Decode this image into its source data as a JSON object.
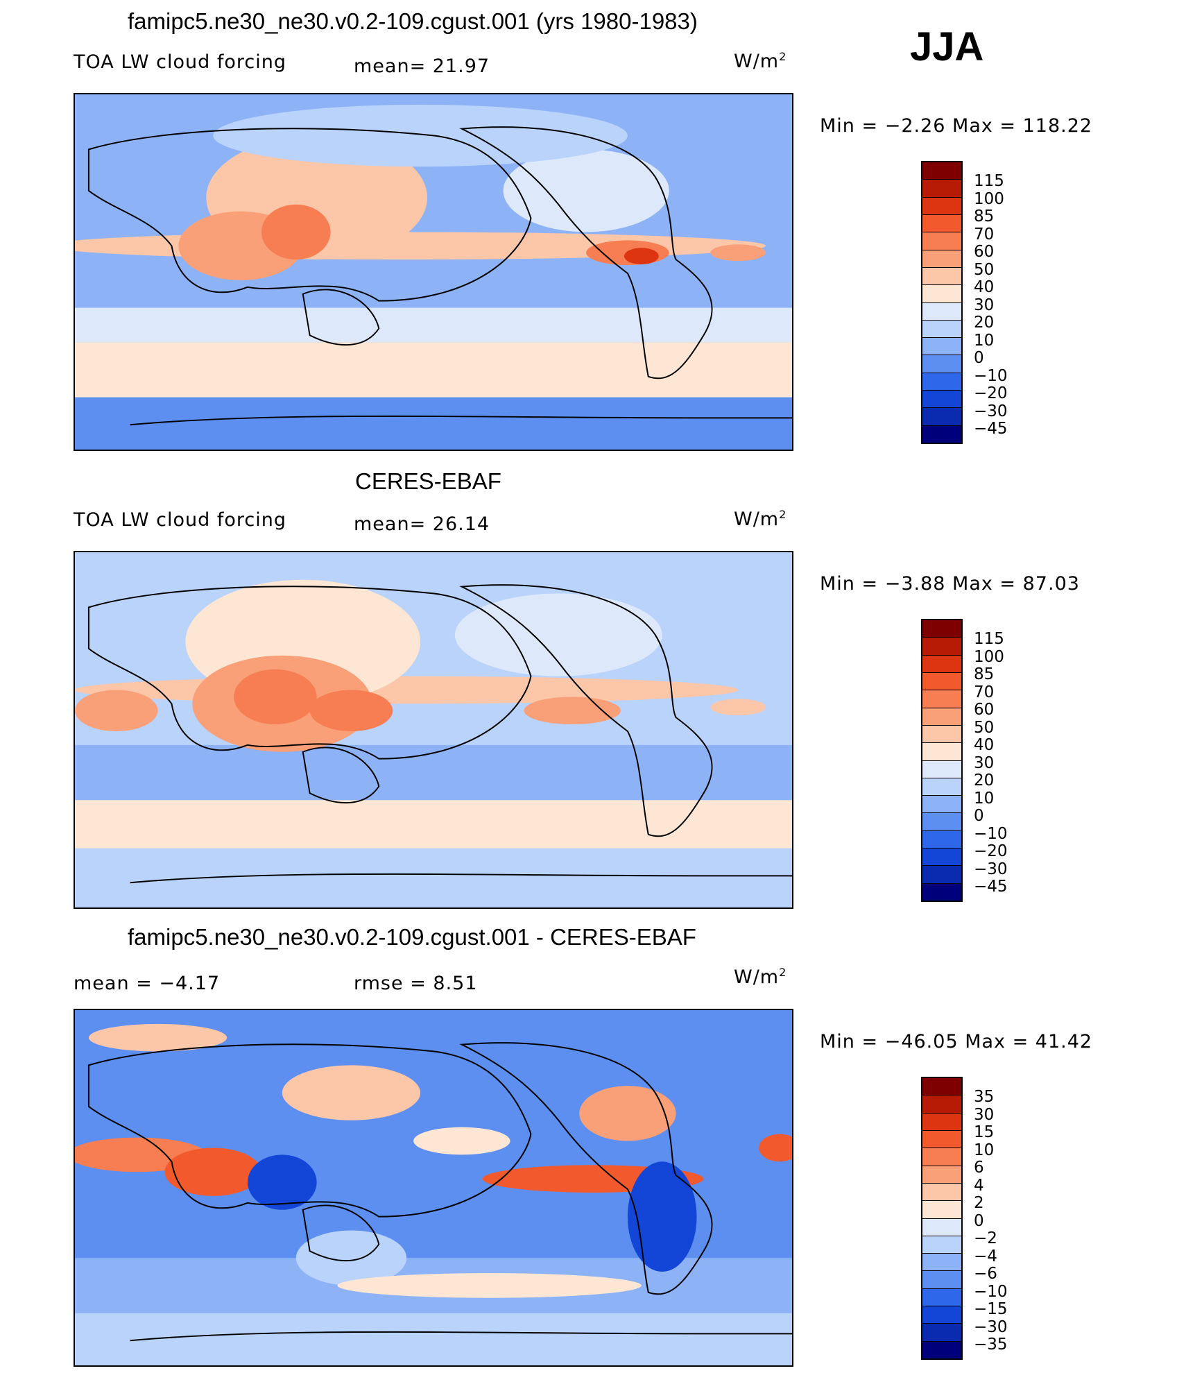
{
  "season": "JJA",
  "palette_main": [
    "#00007a",
    "#0a2bb0",
    "#1346d6",
    "#2f67ea",
    "#5d8ff0",
    "#8db3f6",
    "#b9d3fa",
    "#dde9fb",
    "#fde6d3",
    "#fcc6a8",
    "#f9a078",
    "#f77d52",
    "#f25a2d",
    "#dd3511",
    "#b71a05",
    "#7f0000"
  ],
  "palette_diff": [
    "#00007a",
    "#0a2bb0",
    "#1346d6",
    "#2f67ea",
    "#5d8ff0",
    "#8db3f6",
    "#b9d3fa",
    "#dde9fb",
    "#fde6d3",
    "#fcc6a8",
    "#f9a078",
    "#f77d52",
    "#f25a2d",
    "#dd3511",
    "#b71a05",
    "#7f0000"
  ],
  "panels": [
    {
      "title": "famipc5.ne30_ne30.v0.2-109.cgust.001 (yrs 1980-1983)",
      "left_label": "TOA LW cloud forcing",
      "mid_label": "mean=   21.97",
      "units": "W/m",
      "units_sup": "2",
      "minmax": "Min =   −2.26 Max = 118.22",
      "colorbar_labels": [
        "115",
        "100",
        "85",
        "70",
        "60",
        "50",
        "40",
        "30",
        "20",
        "10",
        "0",
        "−10",
        "−20",
        "−30",
        "−45"
      ]
    },
    {
      "title": "CERES-EBAF",
      "left_label": "TOA LW cloud forcing",
      "mid_label": "mean=   26.14",
      "units": "W/m",
      "units_sup": "2",
      "minmax": "Min =   −3.88 Max =   87.03",
      "colorbar_labels": [
        "115",
        "100",
        "85",
        "70",
        "60",
        "50",
        "40",
        "30",
        "20",
        "10",
        "0",
        "−10",
        "−20",
        "−30",
        "−45"
      ]
    },
    {
      "title": "famipc5.ne30_ne30.v0.2-109.cgust.001 - CERES-EBAF",
      "left_label": "mean =   −4.17",
      "mid_label": "rmse =    8.51",
      "units": "W/m",
      "units_sup": "2",
      "minmax": "Min = −46.05 Max =   41.42",
      "colorbar_labels": [
        "35",
        "30",
        "15",
        "10",
        "6",
        "4",
        "2",
        "0",
        "−2",
        "−4",
        "−6",
        "−10",
        "−15",
        "−30",
        "−35"
      ]
    }
  ]
}
